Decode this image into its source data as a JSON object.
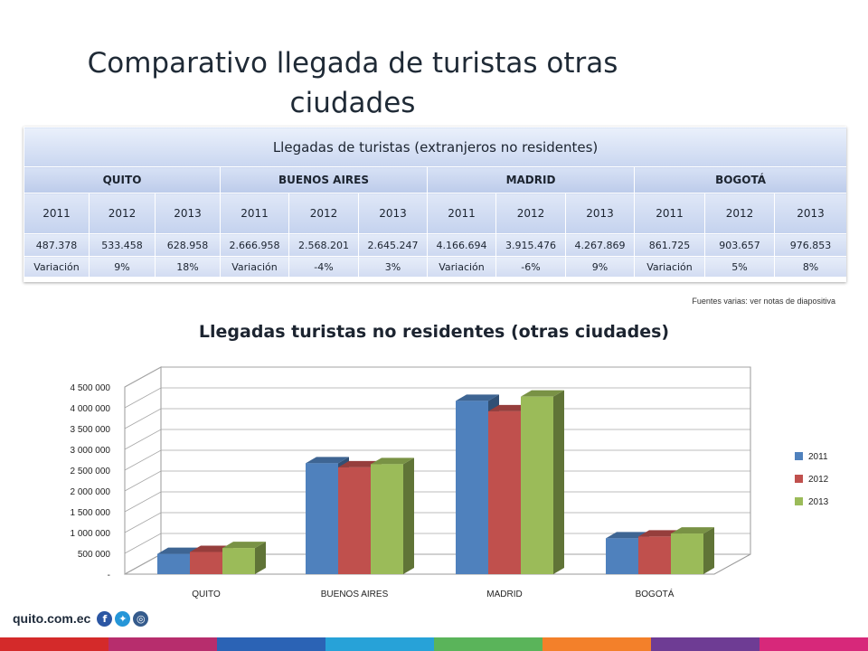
{
  "page": {
    "title": "Comparativo llegada de turistas otras ciudades",
    "source_note": "Fuentes varias: ver notas de diapositiva",
    "logo_text": "quito.com.ec",
    "social_icons": [
      "facebook-icon",
      "twitter-icon",
      "instagram-icon"
    ],
    "stripe_colors": [
      "#d42a2a",
      "#b72d6d",
      "#2b63b5",
      "#27a2d8",
      "#5ab45a",
      "#f3802a",
      "#6e3c94",
      "#d7287a"
    ]
  },
  "table": {
    "header": "Llegadas de turistas (extranjeros no residentes)",
    "cities": [
      "QUITO",
      "BUENOS AIRES",
      "MADRID",
      "BOGOTÁ"
    ],
    "years": [
      "2011",
      "2012",
      "2013",
      "2011",
      "2012",
      "2013",
      "2011",
      "2012",
      "2013",
      "2011",
      "2012",
      "2013"
    ],
    "values": [
      "487.378",
      "533.458",
      "628.958",
      "2.666.958",
      "2.568.201",
      "2.645.247",
      "4.166.694",
      "3.915.476",
      "4.267.869",
      "861.725",
      "903.657",
      "976.853"
    ],
    "variation": [
      "Variación",
      "9%",
      "18%",
      "Variación",
      "-4%",
      "3%",
      "Variación",
      "-6%",
      "9%",
      "Variación",
      "5%",
      "8%"
    ]
  },
  "chart_data": {
    "type": "bar",
    "title": "Llegadas turistas no residentes  (otras ciudades)",
    "categories": [
      "QUITO",
      "BUENOS AIRES",
      "MADRID",
      "BOGOTÁ"
    ],
    "series": [
      {
        "name": "2011",
        "values": [
          487378,
          2666958,
          4166694,
          861725
        ],
        "color": "#4f81bd"
      },
      {
        "name": "2012",
        "values": [
          533458,
          2568201,
          3915476,
          903657
        ],
        "color": "#c0504d"
      },
      {
        "name": "2013",
        "values": [
          628958,
          2645247,
          4267869,
          976853
        ],
        "color": "#9bbb59"
      }
    ],
    "ylim": [
      0,
      4500000
    ],
    "yticks": [
      0,
      500000,
      1000000,
      1500000,
      2000000,
      2500000,
      3000000,
      3500000,
      4000000,
      4500000
    ],
    "ytick_labels": [
      "-",
      "500 000",
      "1 000 000",
      "1 500 000",
      "2 000 000",
      "2 500 000",
      "3 000 000",
      "3 500 000",
      "4 000 000",
      "4 500 000"
    ],
    "grid": true,
    "legend": "right",
    "style": "3d-clustered"
  }
}
